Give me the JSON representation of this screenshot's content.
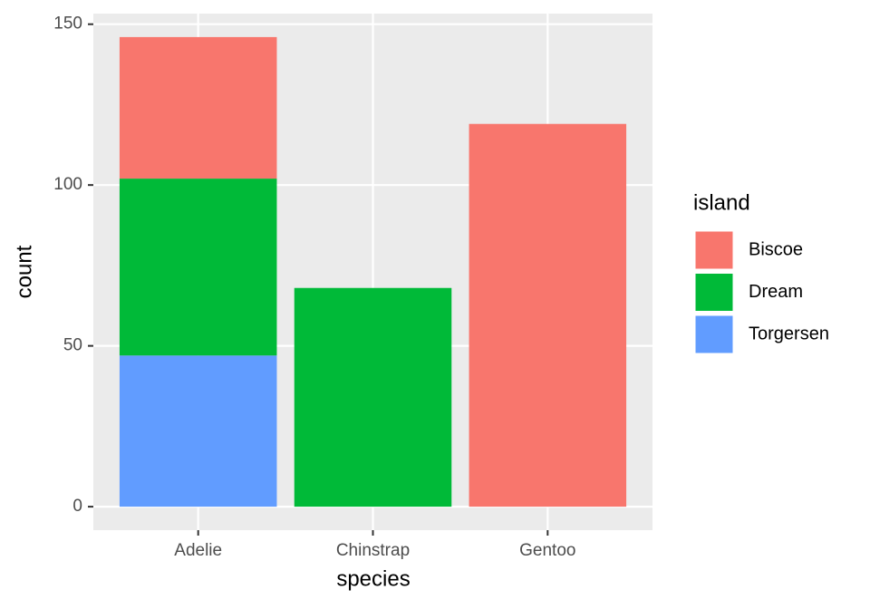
{
  "chart_data": {
    "type": "stacked-bar",
    "x_label": "species",
    "y_label": "count",
    "categories": [
      "Adelie",
      "Chinstrap",
      "Gentoo"
    ],
    "legend_title": "island",
    "legend_position": "right",
    "series": [
      {
        "name": "Biscoe",
        "color": "#f8766d",
        "values": [
          44,
          0,
          119
        ]
      },
      {
        "name": "Dream",
        "color": "#00ba38",
        "values": [
          55,
          68,
          0
        ]
      },
      {
        "name": "Torgersen",
        "color": "#619cff",
        "values": [
          47,
          0,
          0
        ]
      }
    ],
    "stack_order": "reverse",
    "ylim": [
      -7.3,
      153.3
    ],
    "yticks": [
      0,
      50,
      100,
      150
    ],
    "grid": true
  }
}
